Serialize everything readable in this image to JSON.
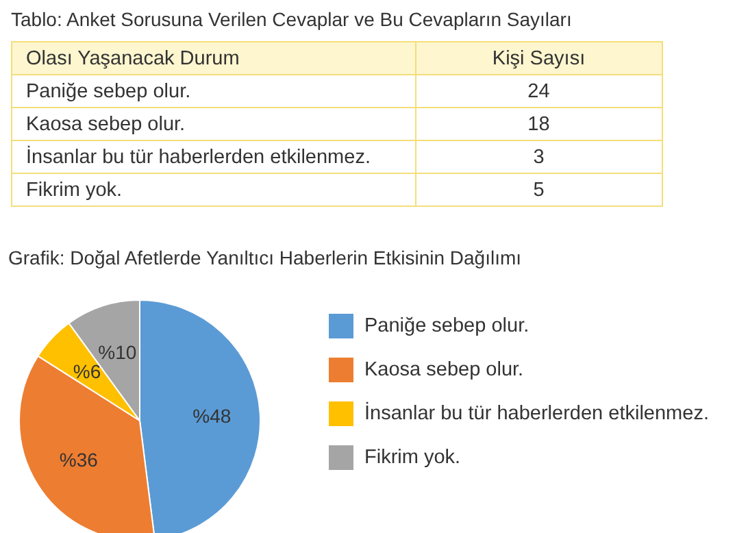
{
  "chart_data": [
    {
      "type": "other",
      "title": "Tablo: Anket Sorusuna Verilen Cevaplar ve Bu Cevapların Sayıları",
      "xlabel": "Olası Yaşanacak Durum",
      "ylabel": "Kişi Sayısı",
      "categories": [
        "Paniğe sebep olur.",
        "Kaosa sebep olur.",
        "İnsanlar bu tür haberlerden etkilenmez.",
        "Fikrim yok."
      ],
      "values": [
        24,
        18,
        3,
        5
      ],
      "data_labels": true
    },
    {
      "type": "pie",
      "title": "Grafik: Doğal Afetlerde Yanıltıcı Haberlerin Etkisinin Dağılımı",
      "categories": [
        "Paniğe sebep olur.",
        "Kaosa sebep olur.",
        "İnsanlar bu tür haberlerden etkilenmez.",
        "Fikrim yok."
      ],
      "values": [
        48,
        36,
        6,
        10
      ],
      "value_labels": [
        "%48",
        "%36",
        "%6",
        "%10"
      ],
      "colors": [
        "#5b9bd5",
        "#ed7d31",
        "#ffc000",
        "#a5a5a5"
      ],
      "legend": "right"
    }
  ]
}
